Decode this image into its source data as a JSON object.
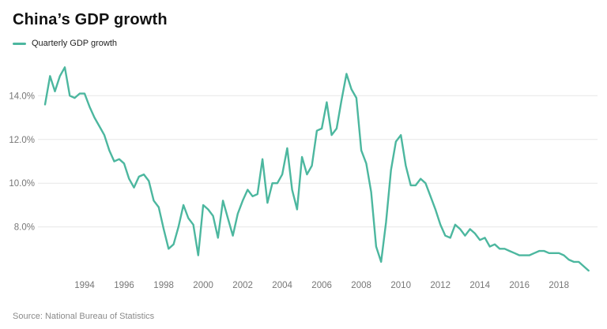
{
  "header": {
    "title": "China’s GDP growth"
  },
  "legend": {
    "label": "Quarterly GDP growth"
  },
  "footer": {
    "source": "Source: National Bureau of Statistics"
  },
  "chart_data": {
    "type": "line",
    "title": "China’s GDP growth",
    "xlabel": "",
    "ylabel": "",
    "legend_position": "top-left",
    "grid": "horizontal-only",
    "series_name": "Quarterly GDP growth",
    "color": "#4cb79f",
    "grid_color": "#e7e7e7",
    "axis_text_color": "#767676",
    "x_start_year": 1992,
    "x_step_years": 0.25,
    "xlim": [
      1992.0,
      2019.75
    ],
    "ylim": [
      6.0,
      15.6
    ],
    "x_tick_years": [
      1994,
      1996,
      1998,
      2000,
      2002,
      2004,
      2006,
      2008,
      2010,
      2012,
      2014,
      2016,
      2018
    ],
    "y_ticks": [
      {
        "value": 8,
        "label": "8.0%"
      },
      {
        "value": 10,
        "label": "10.0%"
      },
      {
        "value": 12,
        "label": "12.0%"
      },
      {
        "value": 14,
        "label": "14.0%"
      }
    ],
    "values": [
      13.6,
      14.9,
      14.2,
      14.9,
      15.3,
      14.0,
      13.9,
      14.1,
      14.1,
      13.5,
      13.0,
      12.6,
      12.2,
      11.5,
      11.0,
      11.1,
      10.9,
      10.2,
      9.8,
      10.3,
      10.4,
      10.1,
      9.2,
      8.9,
      7.9,
      7.0,
      7.2,
      8.0,
      9.0,
      8.4,
      8.1,
      6.7,
      9.0,
      8.8,
      8.5,
      7.5,
      9.2,
      8.4,
      7.6,
      8.6,
      9.2,
      9.7,
      9.4,
      9.5,
      11.1,
      9.1,
      10.0,
      10.0,
      10.4,
      11.6,
      9.7,
      8.8,
      11.2,
      10.4,
      10.8,
      12.4,
      12.5,
      13.7,
      12.2,
      12.5,
      13.8,
      15.0,
      14.3,
      13.9,
      11.5,
      10.9,
      9.6,
      7.1,
      6.4,
      8.2,
      10.6,
      11.9,
      12.2,
      10.8,
      9.9,
      9.9,
      10.2,
      10.0,
      9.4,
      8.8,
      8.1,
      7.6,
      7.5,
      8.1,
      7.9,
      7.6,
      7.9,
      7.7,
      7.4,
      7.5,
      7.1,
      7.2,
      7.0,
      7.0,
      6.9,
      6.8,
      6.7,
      6.7,
      6.7,
      6.8,
      6.9,
      6.9,
      6.8,
      6.8,
      6.8,
      6.7,
      6.5,
      6.4,
      6.4,
      6.2,
      6.0
    ]
  }
}
